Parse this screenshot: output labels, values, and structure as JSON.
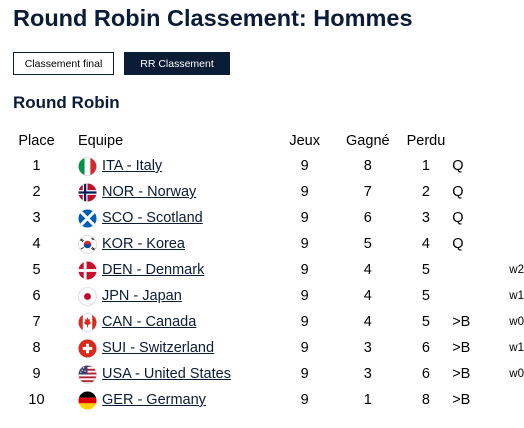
{
  "page": {
    "title": "Round Robin Classement: Hommes"
  },
  "tabs": [
    {
      "label": "Classement final",
      "active": false
    },
    {
      "label": "RR Classement",
      "active": true
    }
  ],
  "section": {
    "title": "Round Robin"
  },
  "table": {
    "headers": {
      "place": "Place",
      "team": "Equipe",
      "games": "Jeux",
      "won": "Gagné",
      "lost": "Perdu"
    },
    "rows": [
      {
        "place": "1",
        "team": "ITA - Italy",
        "flag": "italy-flag-icon",
        "games": "9",
        "won": "8",
        "lost": "1",
        "qual": "Q",
        "extra": ""
      },
      {
        "place": "2",
        "team": "NOR - Norway",
        "flag": "norway-flag-icon",
        "games": "9",
        "won": "7",
        "lost": "2",
        "qual": "Q",
        "extra": ""
      },
      {
        "place": "3",
        "team": "SCO - Scotland",
        "flag": "scotland-flag-icon",
        "games": "9",
        "won": "6",
        "lost": "3",
        "qual": "Q",
        "extra": ""
      },
      {
        "place": "4",
        "team": "KOR - Korea",
        "flag": "korea-flag-icon",
        "games": "9",
        "won": "5",
        "lost": "4",
        "qual": "Q",
        "extra": ""
      },
      {
        "place": "5",
        "team": "DEN - Denmark",
        "flag": "denmark-flag-icon",
        "games": "9",
        "won": "4",
        "lost": "5",
        "qual": "",
        "extra": "w2"
      },
      {
        "place": "6",
        "team": "JPN - Japan",
        "flag": "japan-flag-icon",
        "games": "9",
        "won": "4",
        "lost": "5",
        "qual": "",
        "extra": "w1"
      },
      {
        "place": "7",
        "team": "CAN - Canada",
        "flag": "canada-flag-icon",
        "games": "9",
        "won": "4",
        "lost": "5",
        "qual": ">B",
        "extra": "w0"
      },
      {
        "place": "8",
        "team": "SUI - Switzerland",
        "flag": "switzerland-flag-icon",
        "games": "9",
        "won": "3",
        "lost": "6",
        "qual": ">B",
        "extra": "w1"
      },
      {
        "place": "9",
        "team": "USA - United States",
        "flag": "usa-flag-icon",
        "games": "9",
        "won": "3",
        "lost": "6",
        "qual": ">B",
        "extra": "w0"
      },
      {
        "place": "10",
        "team": "GER - Germany",
        "flag": "germany-flag-icon",
        "games": "9",
        "won": "1",
        "lost": "8",
        "qual": ">B",
        "extra": ""
      }
    ]
  },
  "colors": {
    "navy": "#0b1c36"
  }
}
